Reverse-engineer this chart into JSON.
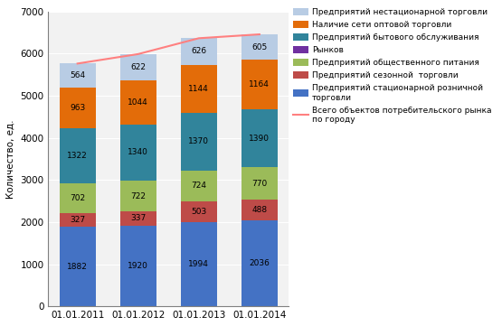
{
  "categories": [
    "01.01.2011",
    "01.01.2012",
    "01.01.2013",
    "01.01.2014"
  ],
  "series": {
    "stacionar": [
      1882,
      1920,
      1994,
      2036
    ],
    "sezonnaya": [
      327,
      337,
      503,
      488
    ],
    "obshchestvennoe": [
      702,
      722,
      724,
      770
    ],
    "rynkov": [
      0,
      0,
      0,
      0
    ],
    "bytovoe": [
      1322,
      1340,
      1370,
      1390
    ],
    "optovaya": [
      963,
      1044,
      1144,
      1164
    ],
    "nestatsionarnaya": [
      564,
      622,
      626,
      605
    ]
  },
  "line_values": [
    5760,
    5985,
    6361,
    6453
  ],
  "colors": {
    "stacionar": "#4472C4",
    "sezonnaya": "#BE4B48",
    "obshchestvennoe": "#9BBB59",
    "rynkov": "#7030A0",
    "bytovoe": "#31849B",
    "optovaya": "#E36C09",
    "nestatsionarnaya": "#B8CCE4"
  },
  "line_color": "#FF8080",
  "ylabel": "Количество, ед.",
  "ylim": [
    0,
    7000
  ],
  "yticks": [
    0,
    1000,
    2000,
    3000,
    4000,
    5000,
    6000,
    7000
  ],
  "legend_labels": {
    "nestatsionarnaya": "Предприятий нестационарной торговли",
    "optovaya": "Наличие сети оптовой торговли",
    "bytovoe": "Предприятий бытового обслуживания",
    "rynkov": "Рынков",
    "obshchestvennoe": "Предприятий общественного питания",
    "sezonnaya": "Предприятий сезонной  торговли",
    "stacionar": "Предприятий стационарной розничной\nторговли",
    "line": "Всего объектов потребительского рынка\nпо городу"
  },
  "bar_width": 0.6,
  "figsize": [
    5.55,
    3.61
  ],
  "dpi": 100,
  "label_fontsize": 6.5,
  "tick_fontsize": 7.5,
  "legend_fontsize": 6.5,
  "ylabel_fontsize": 7.5
}
